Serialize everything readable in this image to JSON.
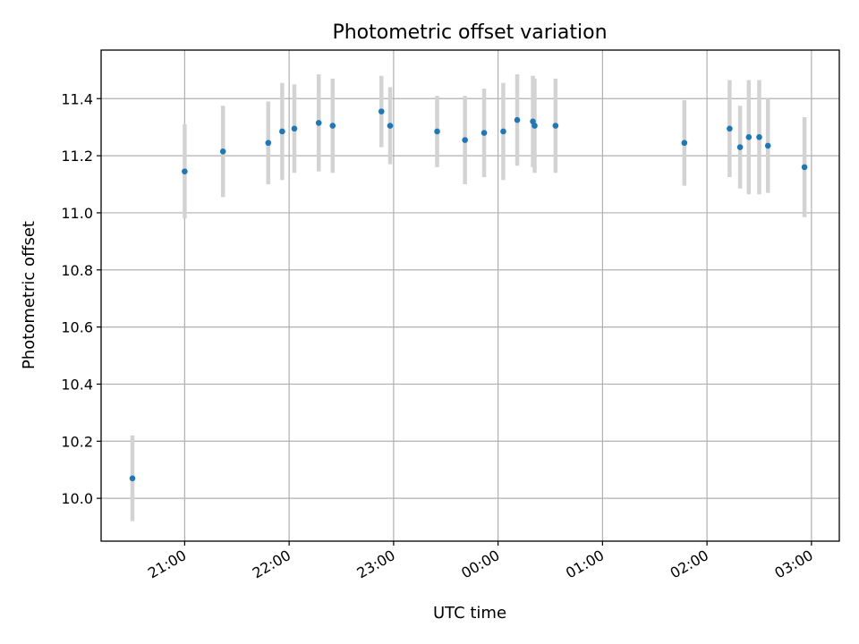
{
  "chart_data": {
    "type": "scatter",
    "title": "Photometric offset variation",
    "xlabel": "UTC time",
    "ylabel": "Photometric offset",
    "x_ticks": [
      "21:00",
      "22:00",
      "23:00",
      "00:00",
      "01:00",
      "02:00",
      "03:00"
    ],
    "y_ticks": [
      "10.0",
      "10.2",
      "10.4",
      "10.6",
      "10.8",
      "11.0",
      "11.2",
      "11.4"
    ],
    "ylim": [
      9.85,
      11.57
    ],
    "xlim": [
      "20:12",
      "03:16"
    ],
    "grid": true,
    "point_color": "#1f77b4",
    "errorbar_color": "#d3d3d3",
    "series": [
      {
        "x": [
          "20:30",
          "21:00",
          "21:22",
          "21:48",
          "21:56",
          "22:03",
          "22:17",
          "22:25",
          "22:53",
          "22:58",
          "23:25",
          "23:41",
          "23:52",
          "00:03",
          "00:11",
          "00:20",
          "00:21",
          "00:33",
          "01:47",
          "02:13",
          "02:19",
          "02:24",
          "02:30",
          "02:35",
          "02:56"
        ],
        "y": [
          10.07,
          11.145,
          11.215,
          11.245,
          11.285,
          11.295,
          11.315,
          11.305,
          11.355,
          11.305,
          11.285,
          11.255,
          11.28,
          11.285,
          11.325,
          11.32,
          11.305,
          11.305,
          11.245,
          11.295,
          11.23,
          11.265,
          11.265,
          11.235,
          11.16
        ],
        "err": [
          0.15,
          0.165,
          0.16,
          0.145,
          0.17,
          0.155,
          0.17,
          0.165,
          0.125,
          0.135,
          0.125,
          0.155,
          0.155,
          0.17,
          0.16,
          0.16,
          0.165,
          0.165,
          0.15,
          0.17,
          0.145,
          0.2,
          0.2,
          0.165,
          0.175
        ]
      }
    ]
  }
}
